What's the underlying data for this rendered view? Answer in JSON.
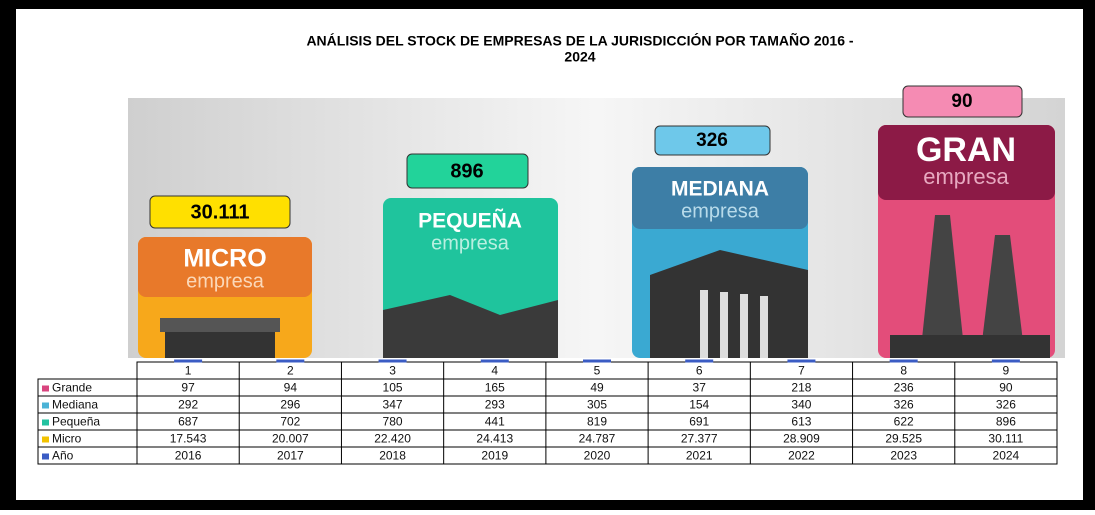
{
  "chart_data": {
    "type": "table",
    "title": "ANÁLISIS DEL STOCK DE EMPRESAS DE LA JURISDICCIÓN  POR TAMAÑO  2016 -",
    "title_line2": "2024",
    "panels": [
      {
        "title": "MICRO",
        "subtitle": "empresa",
        "color": "#e8792a"
      },
      {
        "title": "PEQUEÑA",
        "subtitle": "empresa",
        "color": "#22b79a"
      },
      {
        "title": "MEDIANA",
        "subtitle": "empresa",
        "color": "#3f8fb8"
      },
      {
        "title": "GRAN",
        "subtitle": "empresa",
        "color": "#8c1a46"
      }
    ],
    "categories": [
      "1",
      "2",
      "3",
      "4",
      "5",
      "6",
      "7",
      "8",
      "9"
    ],
    "series": [
      {
        "name": "Grande",
        "color": "#d9457f",
        "values": [
          97,
          94,
          105,
          165,
          49,
          37,
          218,
          236,
          90
        ]
      },
      {
        "name": "Mediana",
        "color": "#4bb3d6",
        "values": [
          292,
          296,
          347,
          293,
          305,
          154,
          340,
          326,
          326
        ]
      },
      {
        "name": "Pequeña",
        "color": "#22c2a0",
        "values": [
          687,
          702,
          780,
          441,
          819,
          691,
          613,
          622,
          896
        ]
      },
      {
        "name": "Micro",
        "color": "#f2c200",
        "values": [
          17543,
          20007,
          22420,
          24413,
          24787,
          27377,
          28909,
          29525,
          30111
        ],
        "value_labels": [
          "17.543",
          "20.007",
          "22.420",
          "24.413",
          "24.787",
          "27.377",
          "28.909",
          "29.525",
          "30.111"
        ]
      },
      {
        "name": "Año",
        "color": "#3b5cc4",
        "values": [
          2016,
          2017,
          2018,
          2019,
          2020,
          2021,
          2022,
          2023,
          2024
        ]
      }
    ]
  }
}
